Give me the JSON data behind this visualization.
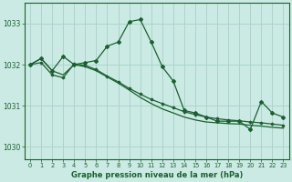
{
  "bg_color": "#cceae4",
  "grid_color": "#aad4cc",
  "line_color": "#1a6030",
  "title": "Graphe pression niveau de la mer (hPa)",
  "xlim": [
    -0.5,
    23.5
  ],
  "ylim": [
    1029.7,
    1033.5
  ],
  "yticks": [
    1030,
    1031,
    1032,
    1033
  ],
  "xticks": [
    0,
    1,
    2,
    3,
    4,
    5,
    6,
    7,
    8,
    9,
    10,
    11,
    12,
    13,
    14,
    15,
    16,
    17,
    18,
    19,
    20,
    21,
    22,
    23
  ],
  "line1_x": [
    0,
    1,
    2,
    3,
    4,
    5,
    6,
    7,
    8,
    9,
    10,
    11,
    12,
    13,
    14,
    15,
    16,
    17,
    18,
    19,
    20,
    21,
    22,
    23
  ],
  "line1_y": [
    1032.0,
    1032.15,
    1031.85,
    1031.75,
    1032.0,
    1031.95,
    1031.85,
    1031.7,
    1031.55,
    1031.38,
    1031.2,
    1031.05,
    1030.92,
    1030.82,
    1030.72,
    1030.65,
    1030.6,
    1030.58,
    1030.56,
    1030.55,
    1030.52,
    1030.5,
    1030.47,
    1030.45
  ],
  "line2_x": [
    0,
    1,
    2,
    3,
    4,
    5,
    6,
    7,
    8,
    9,
    10,
    11,
    12,
    13,
    14,
    15,
    16,
    17,
    18,
    19,
    20,
    21,
    22,
    23
  ],
  "line2_y": [
    1032.0,
    1032.15,
    1031.85,
    1032.2,
    1032.0,
    1032.05,
    1032.1,
    1032.45,
    1032.55,
    1033.05,
    1033.1,
    1032.55,
    1031.95,
    1031.6,
    1030.88,
    1030.82,
    1030.72,
    1030.62,
    1030.62,
    1030.62,
    1030.42,
    1031.1,
    1030.82,
    1030.72
  ],
  "line3_x": [
    0,
    1,
    2,
    3,
    4,
    5,
    6,
    7,
    8,
    9,
    10,
    11,
    12,
    13,
    14,
    15,
    16,
    17,
    18,
    19,
    20,
    21,
    22,
    23
  ],
  "line3_y": [
    1032.0,
    1032.05,
    1031.75,
    1031.68,
    1032.02,
    1031.98,
    1031.88,
    1031.72,
    1031.58,
    1031.42,
    1031.28,
    1031.15,
    1031.05,
    1030.95,
    1030.85,
    1030.78,
    1030.72,
    1030.68,
    1030.65,
    1030.63,
    1030.6,
    1030.58,
    1030.55,
    1030.52
  ]
}
